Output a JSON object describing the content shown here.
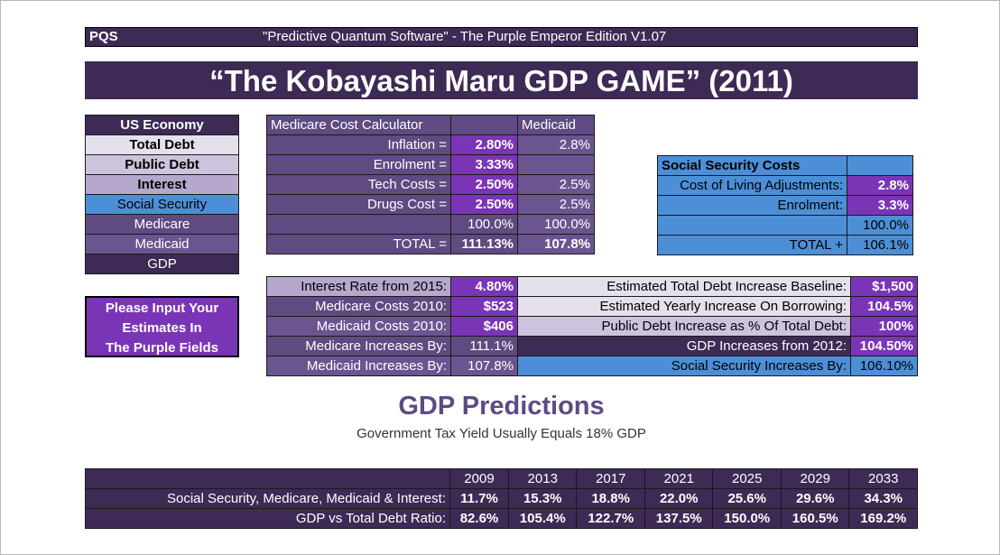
{
  "header": {
    "brand": "PQS",
    "edition": "\"Predictive Quantum Software\" - The Purple Emperor Edition V1.07"
  },
  "title": "“The Kobayashi Maru GDP GAME” (2011)",
  "legend": {
    "heading": "US Economy",
    "items": [
      "Total Debt",
      "Public Debt",
      "Interest",
      "Social Security",
      "Medicare",
      "Medicaid",
      "GDP"
    ]
  },
  "input_note": {
    "line1": "Please Input Your",
    "line2": "Estimates In",
    "line3": "The Purple Fields"
  },
  "medicare_calc": {
    "heading": "Medicare Cost Calculator",
    "col2_heading": "Medicaid",
    "rows": [
      {
        "label": "Inflation =",
        "medicare": "2.80%",
        "medicaid": "2.8%"
      },
      {
        "label": "Enrolment =",
        "medicare": "3.33%",
        "medicaid": ""
      },
      {
        "label": "Tech Costs =",
        "medicare": "2.50%",
        "medicaid": "2.5%"
      },
      {
        "label": "Drugs Cost =",
        "medicare": "2.50%",
        "medicaid": "2.5%"
      },
      {
        "label": "",
        "medicare": "100.0%",
        "medicaid": "100.0%"
      },
      {
        "label": "TOTAL =",
        "medicare": "111.13%",
        "medicaid": "107.8%"
      }
    ]
  },
  "ss_costs": {
    "heading": "Social Security Costs",
    "rows": [
      {
        "label": "Cost of Living Adjustments:",
        "value": "2.8%"
      },
      {
        "label": "Enrolment:",
        "value": "3.3%"
      },
      {
        "label": "",
        "value": "100.0%"
      },
      {
        "label": "TOTAL +",
        "value": "106.1%"
      }
    ]
  },
  "params_left": [
    {
      "label": "Interest Rate from 2015:",
      "value": "4.80%"
    },
    {
      "label": "Medicare Costs 2010:",
      "value": "$523"
    },
    {
      "label": "Medicaid Costs 2010:",
      "value": "$406"
    },
    {
      "label": "Medicare Increases By:",
      "value": "111.1%"
    },
    {
      "label": "Medicaid Increases By:",
      "value": "107.8%"
    }
  ],
  "params_right": [
    {
      "label": "Estimated Total Debt Increase Baseline:",
      "value": "$1,500"
    },
    {
      "label": "Estimated Yearly Increase On Borrowing:",
      "value": "104.5%"
    },
    {
      "label": "Public Debt Increase as % Of Total Debt:",
      "value": "100%"
    },
    {
      "label": "GDP Increases from 2012:",
      "value": "104.50%"
    },
    {
      "label": "Social Security Increases By:",
      "value": "106.10%"
    }
  ],
  "predictions": {
    "heading": "GDP Predictions",
    "subheading": "Government Tax Yield Usually Equals 18% GDP",
    "years": [
      "2009",
      "2013",
      "2017",
      "2021",
      "2025",
      "2029",
      "2033"
    ],
    "rows": [
      {
        "label": "Social Security, Medicare, Medicaid & Interest:",
        "values": [
          "11.7%",
          "15.3%",
          "18.8%",
          "22.0%",
          "25.6%",
          "29.6%",
          "34.3%"
        ]
      },
      {
        "label": "GDP vs Total Debt Ratio:",
        "values": [
          "82.6%",
          "105.4%",
          "122.7%",
          "137.5%",
          "150.0%",
          "160.5%",
          "169.2%"
        ]
      }
    ]
  }
}
